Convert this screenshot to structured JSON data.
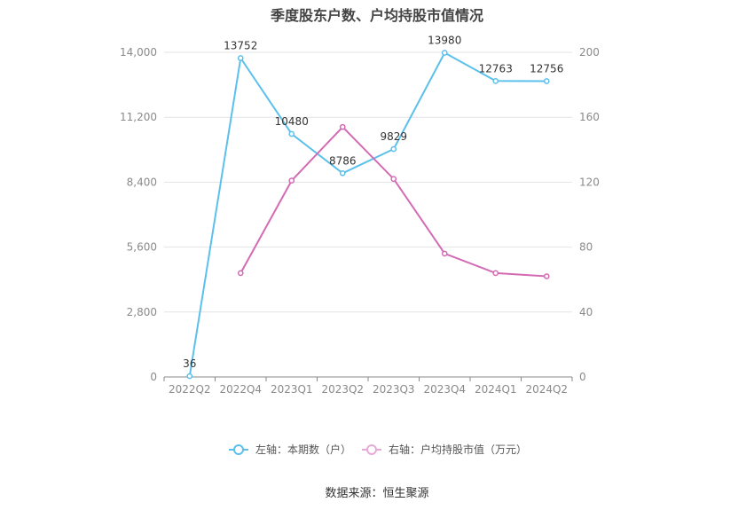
{
  "chart_data": {
    "type": "line",
    "title": "季度股东户数、户均持股市值情况",
    "categories": [
      "2022Q2",
      "2022Q4",
      "2023Q1",
      "2023Q2",
      "2023Q3",
      "2023Q4",
      "2024Q1",
      "2024Q2"
    ],
    "series": [
      {
        "name": "左轴：本期数（户）",
        "axis": "left",
        "color": "#5bc0eb",
        "values": [
          36,
          13752,
          10480,
          8786,
          9829,
          13980,
          12763,
          12756
        ],
        "data_labels": [
          "36",
          "13752",
          "10480",
          "8786",
          "9829",
          "13980",
          "12763",
          "12756"
        ]
      },
      {
        "name": "右轴：户均持股市值（万元）",
        "axis": "right",
        "color": "#d36bb4",
        "values": [
          null,
          64,
          121,
          154,
          122,
          76,
          64,
          62
        ]
      }
    ],
    "left_axis": {
      "ticks": [
        "0",
        "2,800",
        "5,600",
        "8,400",
        "11,200",
        "14,000"
      ],
      "min": 0,
      "max": 14000
    },
    "right_axis": {
      "ticks": [
        "0",
        "40",
        "80",
        "120",
        "160",
        "200"
      ],
      "min": 0,
      "max": 200
    },
    "grid": true,
    "legend_position": "bottom"
  },
  "source_text": "数据来源：恒生聚源"
}
